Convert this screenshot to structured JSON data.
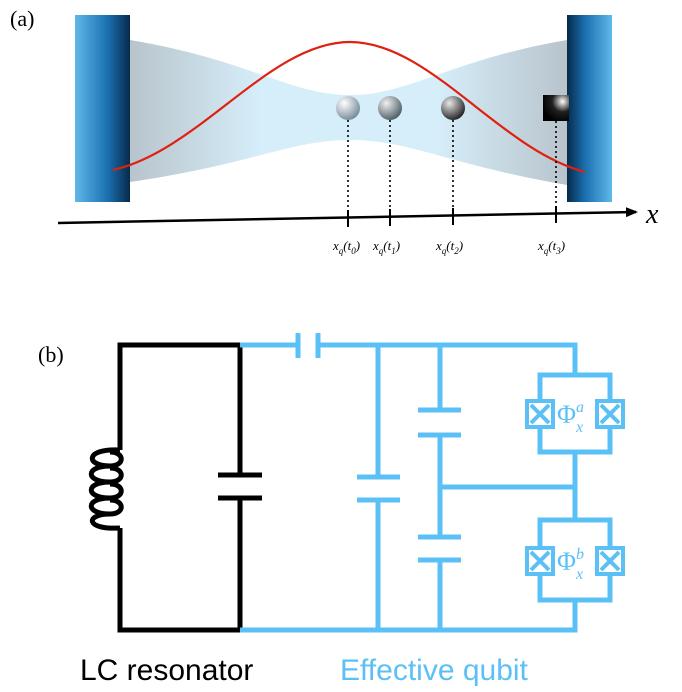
{
  "panel_a": {
    "label": "(a)",
    "axis_label": "x",
    "position_labels": [
      {
        "parts": [
          "x",
          "q",
          "(t",
          "0",
          ")"
        ]
      },
      {
        "parts": [
          "x",
          "q",
          "(t",
          "1",
          ")"
        ]
      },
      {
        "parts": [
          "x",
          "q",
          "(t",
          "2",
          ")"
        ]
      },
      {
        "parts": [
          "x",
          "q",
          "(t",
          "3",
          ")"
        ]
      }
    ]
  },
  "panel_b": {
    "label": "(b)",
    "flux_labels": [
      {
        "parts": [
          "Φ",
          "a",
          "x"
        ]
      },
      {
        "parts": [
          "Φ",
          "b",
          "x"
        ]
      }
    ],
    "captions": [
      "LC resonator",
      "Effective qubit"
    ]
  }
}
